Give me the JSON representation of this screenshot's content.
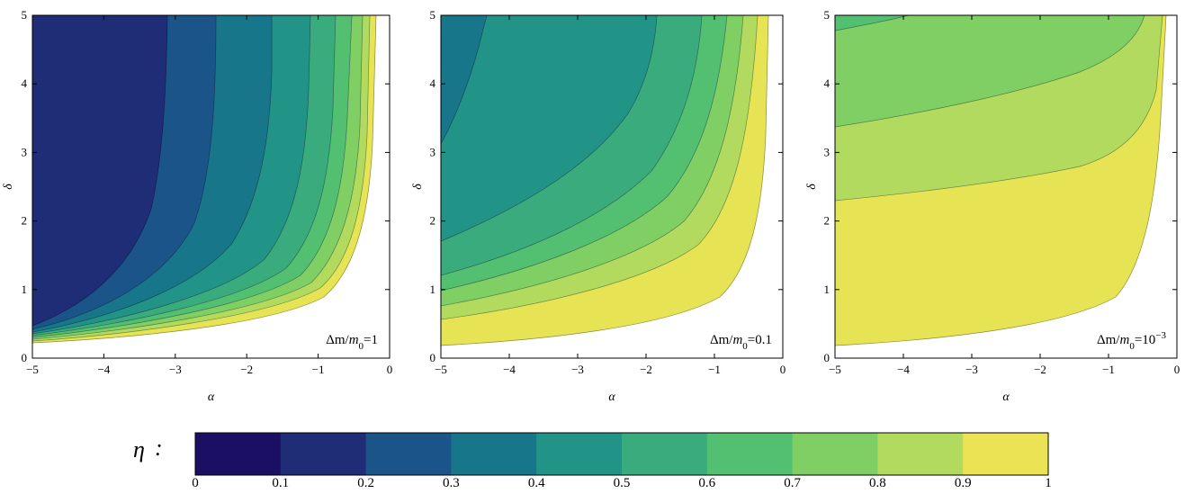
{
  "chart_data": [
    {
      "type": "contour",
      "panel_label": "Δm/m0=1",
      "label_parts": [
        "Δm/",
        "m",
        "0",
        "=1",
        ""
      ],
      "xlabel": "α",
      "ylabel": "δ",
      "xlim": [
        -5,
        0
      ],
      "ylim": [
        0,
        5
      ],
      "xticks": [
        "−5",
        "−4",
        "−3",
        "−2",
        "−1",
        "0"
      ],
      "yticks": [
        "0",
        "1",
        "2",
        "3",
        "4",
        "5"
      ],
      "contour_levels": [
        0.1,
        0.2,
        0.3,
        0.4,
        0.5,
        0.6,
        0.7,
        0.8,
        0.9,
        1.0
      ],
      "upper_boundary_alpha": [
        -5,
        -4,
        -3,
        -2,
        -1,
        -0.6,
        -0.4,
        -0.3,
        -0.25,
        -0.2
      ],
      "upper_boundary_delta": [
        0.38,
        0.42,
        0.5,
        0.62,
        0.95,
        1.3,
        1.8,
        2.6,
        3.6,
        5.0
      ],
      "lower_boundary_delta_at_alpha_minus5": 0.18,
      "region_eta_at_delta5": [
        {
          "alpha_min": -5,
          "alpha_max": -3.15,
          "eta_range": [
            0.1,
            0.2
          ]
        },
        {
          "alpha_min": -3.15,
          "alpha_max": -2.0,
          "eta_range": [
            0.2,
            0.3
          ]
        },
        {
          "alpha_min": -2.0,
          "alpha_max": -1.4,
          "eta_range": [
            0.3,
            0.4
          ]
        },
        {
          "alpha_min": -1.4,
          "alpha_max": -0.95,
          "eta_range": [
            0.4,
            0.5
          ]
        }
      ]
    },
    {
      "type": "contour",
      "panel_label": "Δm/m0=0.1",
      "label_parts": [
        "Δm/",
        "m",
        "0",
        "=0.1",
        ""
      ],
      "xlabel": "α",
      "ylabel": "δ",
      "xlim": [
        -5,
        0
      ],
      "ylim": [
        0,
        5
      ],
      "xticks": [
        "−5",
        "−4",
        "−3",
        "−2",
        "−1",
        "0"
      ],
      "yticks": [
        "0",
        "1",
        "2",
        "3",
        "4",
        "5"
      ],
      "contour_levels": [
        0.4,
        0.5,
        0.6,
        0.7,
        0.8,
        0.9,
        1.0
      ],
      "contour_delta_at_alpha_minus5": [
        3.1,
        1.7,
        1.2,
        0.95,
        0.75,
        0.58
      ],
      "lower_boundary_delta_at_alpha_minus5": 0.2
    },
    {
      "type": "contour",
      "panel_label": "Δm/m0=10−3",
      "label_parts": [
        "Δm/",
        "m",
        "0",
        "=10",
        "−3"
      ],
      "xlabel": "α",
      "ylabel": "δ",
      "xlim": [
        -5,
        0
      ],
      "ylim": [
        0,
        5
      ],
      "xticks": [
        "−5",
        "−4",
        "−3",
        "−2",
        "−1",
        "0"
      ],
      "yticks": [
        "0",
        "1",
        "2",
        "3",
        "4",
        "5"
      ],
      "contour_levels": [
        0.6,
        0.7,
        0.8,
        0.9,
        1.0
      ],
      "contour_delta_at_alpha_minus5": [
        4.8,
        3.4,
        2.3
      ],
      "lower_boundary_delta_at_alpha_minus5": 0.2
    }
  ],
  "colorbar": {
    "symbol": "η",
    "separator": ":",
    "ticks": [
      "0",
      "0.1",
      "0.2",
      "0.3",
      "0.4",
      "0.5",
      "0.6",
      "0.7",
      "0.8",
      "0.9",
      "1"
    ],
    "colors": [
      "#1b0f63",
      "#1f2c76",
      "#1b5488",
      "#177689",
      "#229487",
      "#3aab7c",
      "#52bf71",
      "#7fcf64",
      "#b1da5f",
      "#ece354"
    ]
  }
}
